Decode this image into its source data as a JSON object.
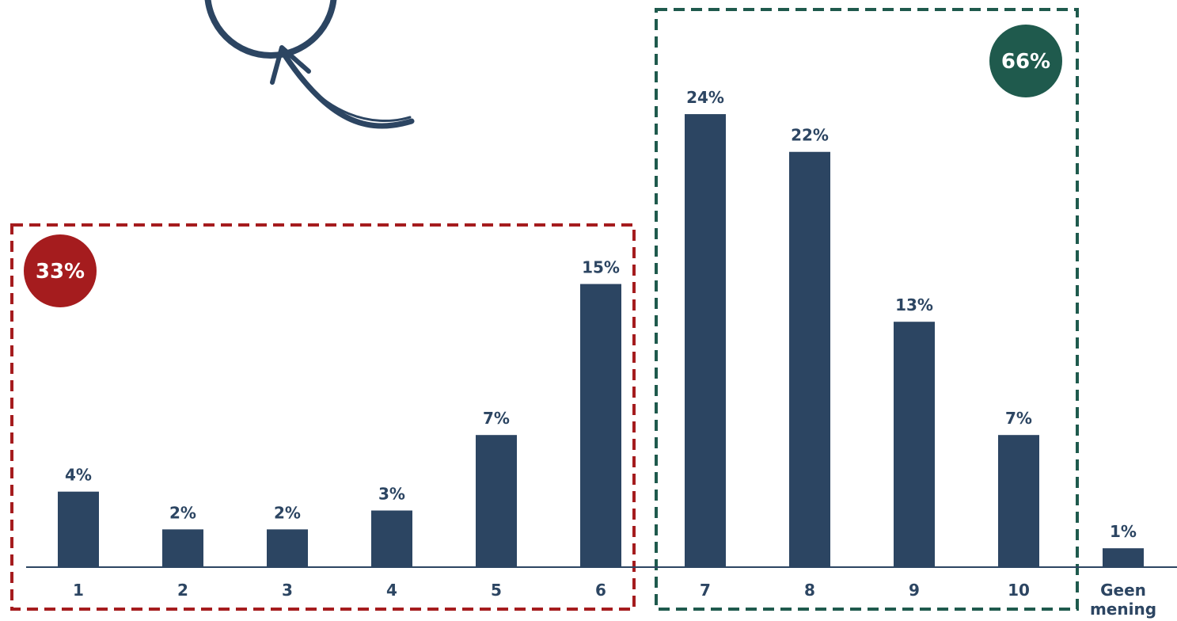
{
  "chart_data": {
    "type": "bar",
    "categories": [
      "1",
      "2",
      "3",
      "4",
      "5",
      "6",
      "7",
      "8",
      "9",
      "10",
      "Geen mening"
    ],
    "values": [
      4,
      2,
      2,
      3,
      7,
      15,
      24,
      22,
      13,
      7,
      1
    ],
    "value_labels": [
      "4%",
      "2%",
      "2%",
      "3%",
      "7%",
      "15%",
      "24%",
      "22%",
      "13%",
      "7%",
      "1%"
    ],
    "title": "",
    "xlabel": "",
    "ylabel": "",
    "ylim": [
      0,
      24
    ],
    "grid": false,
    "groups": [
      {
        "name": "low",
        "categories": [
          "1",
          "2",
          "3",
          "4",
          "5",
          "6"
        ],
        "total_label": "33%",
        "color": "#a51c1e"
      },
      {
        "name": "high",
        "categories": [
          "7",
          "8",
          "9",
          "10"
        ],
        "total_label": "66%",
        "color": "#1f5a4d"
      }
    ]
  },
  "colors": {
    "bar": "#2c4562",
    "label": "#2c4562",
    "axis": "#2c4562"
  },
  "decorations": {
    "arrow": "curved-arrow-icon",
    "circle": "circle-icon"
  }
}
